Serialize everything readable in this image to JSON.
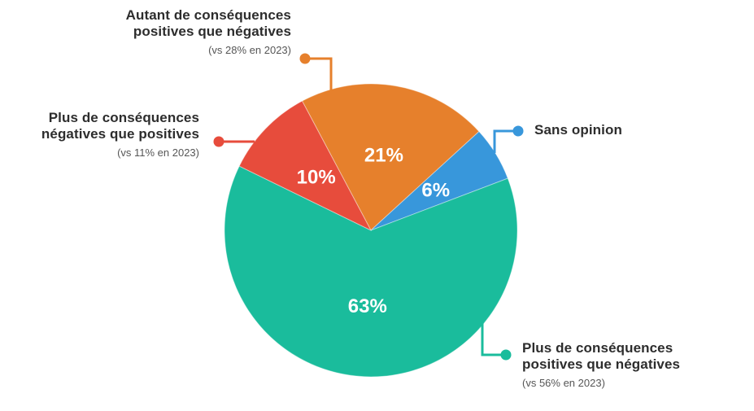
{
  "page": {
    "background": "#ffffff"
  },
  "chart_data": {
    "type": "pie",
    "title": "",
    "unit": "%",
    "rotation_deg_from_top": -28,
    "direction": "clockwise",
    "legend_position": "callout-labels",
    "percent_label_color": "#FFFFFF",
    "label_color": "#2D2D2D",
    "note_color": "#565656",
    "slices": [
      {
        "key": "autant",
        "label": "Autant de conséquences positives que négatives",
        "note": "(vs 28% en 2023)",
        "value": 21,
        "display": "21%",
        "color": "#E6802C"
      },
      {
        "key": "sans_opinion",
        "label": "Sans opinion",
        "note": "",
        "value": 6,
        "display": "6%",
        "color": "#3897DB"
      },
      {
        "key": "positives",
        "label": "Plus de conséquences positives que négatives",
        "note": "(vs 56% en 2023)",
        "value": 63,
        "display": "63%",
        "color": "#1ABC9C"
      },
      {
        "key": "negatives",
        "label": "Plus de conséquences négatives que positives",
        "note": "(vs 11% en 2023)",
        "value": 10,
        "display": "10%",
        "color": "#E74C3C"
      }
    ]
  }
}
